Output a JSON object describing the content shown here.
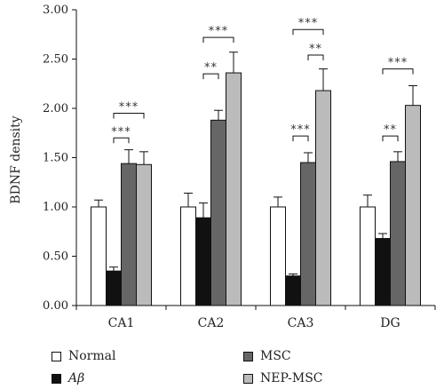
{
  "chart_data": {
    "type": "bar",
    "title": "",
    "xlabel": "",
    "ylabel": "BDNF density",
    "ylim": [
      0,
      3
    ],
    "yticks": [
      "0.00",
      "0.50",
      "1.00",
      "1.50",
      "2.00",
      "2.50",
      "3.00"
    ],
    "categories": [
      "CA1",
      "CA2",
      "CA3",
      "DG"
    ],
    "legend_position": "bottom",
    "series": [
      {
        "name": "Normal",
        "color": "#ffffff",
        "values": [
          1.0,
          1.0,
          1.0,
          1.0
        ],
        "errors": [
          0.07,
          0.14,
          0.1,
          0.12
        ]
      },
      {
        "name": "Aβ",
        "color": "#111111",
        "values": [
          0.35,
          0.89,
          0.3,
          0.68
        ],
        "errors": [
          0.04,
          0.15,
          0.02,
          0.05
        ]
      },
      {
        "name": "MSC",
        "color": "#666666",
        "values": [
          1.44,
          1.88,
          1.45,
          1.46
        ],
        "errors": [
          0.14,
          0.1,
          0.1,
          0.1
        ]
      },
      {
        "name": "NEP-MSC",
        "color": "#bbbbbb",
        "values": [
          1.43,
          2.36,
          2.18,
          2.03
        ],
        "errors": [
          0.13,
          0.21,
          0.22,
          0.2
        ]
      }
    ],
    "annotations": [
      {
        "category": "CA1",
        "from": "Aβ",
        "to": "MSC",
        "label": "***",
        "y": 1.7
      },
      {
        "category": "CA1",
        "from": "Aβ",
        "to": "NEP-MSC",
        "label": "***",
        "y": 1.95
      },
      {
        "category": "CA2",
        "from": "Aβ",
        "to": "MSC",
        "label": "**",
        "y": 2.35
      },
      {
        "category": "CA2",
        "from": "Aβ",
        "to": "NEP-MSC",
        "label": "***",
        "y": 2.72
      },
      {
        "category": "CA3",
        "from": "Aβ",
        "to": "MSC",
        "label": "***",
        "y": 1.72
      },
      {
        "category": "CA3",
        "from": "MSC",
        "to": "NEP-MSC",
        "label": "**",
        "y": 2.54
      },
      {
        "category": "CA3",
        "from": "Aβ",
        "to": "NEP-MSC",
        "label": "***",
        "y": 2.8
      },
      {
        "category": "DG",
        "from": "Aβ",
        "to": "MSC",
        "label": "**",
        "y": 1.72
      },
      {
        "category": "DG",
        "from": "Aβ",
        "to": "NEP-MSC",
        "label": "***",
        "y": 2.4
      }
    ]
  }
}
